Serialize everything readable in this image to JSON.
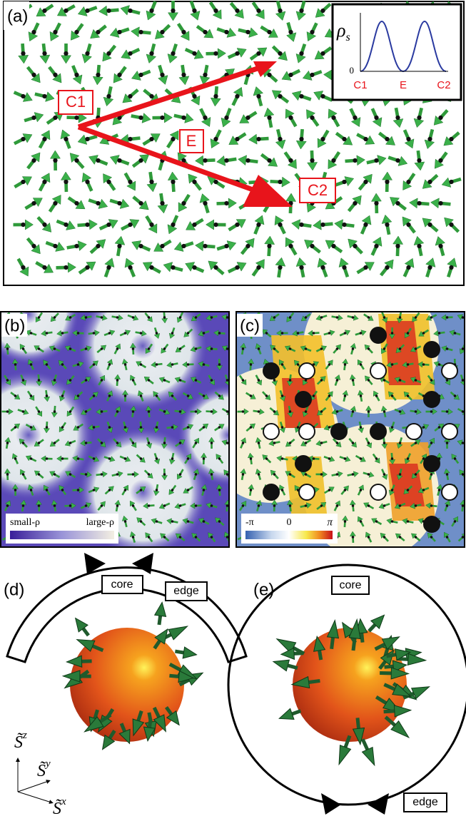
{
  "panels": {
    "a": {
      "label": "(a)",
      "points": [
        "C1",
        "E",
        "C2"
      ],
      "inset": {
        "ylabel": "ρ",
        "ylabel_sub": "s",
        "ytick": 0,
        "xticks": [
          "C1",
          "E",
          "C2"
        ]
      }
    },
    "b": {
      "label": "(b)",
      "colorbar": [
        "small-ρ",
        "large-ρ"
      ]
    },
    "c": {
      "label": "(c)",
      "colorbar": [
        "-π",
        0,
        "π"
      ]
    },
    "d": {
      "label": "(d)",
      "core": "core",
      "edge": "edge",
      "axes": [
        {
          "symbol": "S̃",
          "sup": "z"
        },
        {
          "symbol": "S̃",
          "sup": "y"
        },
        {
          "symbol": "S̃",
          "sup": "x"
        }
      ]
    },
    "e": {
      "label": "(e)",
      "core": "core",
      "edge": "edge"
    }
  }
}
